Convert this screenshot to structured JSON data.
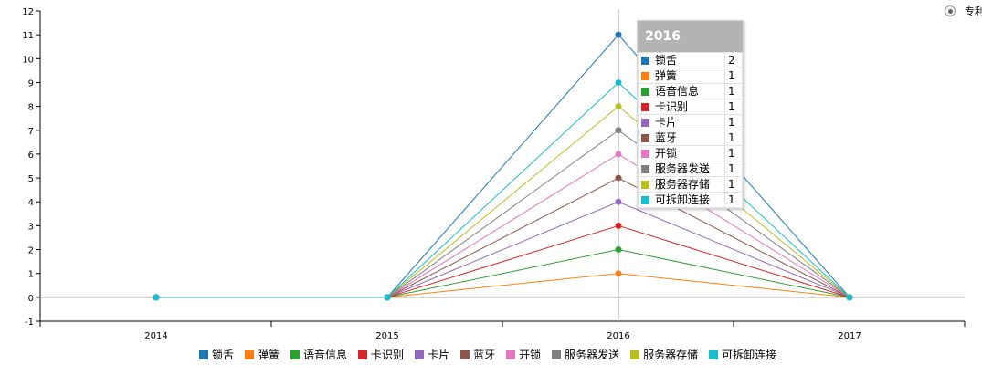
{
  "chart_data": {
    "type": "line",
    "x": [
      "2014",
      "2015",
      "2016",
      "2017"
    ],
    "ylim": [
      -1,
      12
    ],
    "yticks": [
      -1,
      0,
      1,
      2,
      3,
      4,
      5,
      6,
      7,
      8,
      9,
      10,
      11,
      12
    ],
    "series": [
      {
        "name": "锁舌",
        "color": "#1f77b4",
        "values": [
          0,
          0,
          11,
          0
        ]
      },
      {
        "name": "弹簧",
        "color": "#ff7f0e",
        "values": [
          0,
          0,
          1,
          0
        ]
      },
      {
        "name": "语音信息",
        "color": "#2ca02c",
        "values": [
          0,
          0,
          2,
          0
        ]
      },
      {
        "name": "卡识别",
        "color": "#d62728",
        "values": [
          0,
          0,
          3,
          0
        ]
      },
      {
        "name": "卡片",
        "color": "#9467bd",
        "values": [
          0,
          0,
          4,
          0
        ]
      },
      {
        "name": "蓝牙",
        "color": "#8c564b",
        "values": [
          0,
          0,
          5,
          0
        ]
      },
      {
        "name": "开锁",
        "color": "#e377c2",
        "values": [
          0,
          0,
          6,
          0
        ]
      },
      {
        "name": "服务器发送",
        "color": "#7f7f7f",
        "values": [
          0,
          0,
          7,
          0
        ]
      },
      {
        "name": "服务器存储",
        "color": "#bcbd22",
        "values": [
          0,
          0,
          8,
          0
        ]
      },
      {
        "name": "可拆卸连接",
        "color": "#17becf",
        "values": [
          0,
          0,
          9,
          0
        ]
      }
    ],
    "legend_position": "bottom",
    "grid": false
  },
  "tooltip": {
    "title": "2016",
    "rows": [
      {
        "name": "锁舌",
        "value": "2",
        "color": "#1f77b4"
      },
      {
        "name": "弹簧",
        "value": "1",
        "color": "#ff7f0e"
      },
      {
        "name": "语音信息",
        "value": "1",
        "color": "#2ca02c"
      },
      {
        "name": "卡识别",
        "value": "1",
        "color": "#d62728"
      },
      {
        "name": "卡片",
        "value": "1",
        "color": "#9467bd"
      },
      {
        "name": "蓝牙",
        "value": "1",
        "color": "#8c564b"
      },
      {
        "name": "开锁",
        "value": "1",
        "color": "#e377c2"
      },
      {
        "name": "服务器发送",
        "value": "1",
        "color": "#7f7f7f"
      },
      {
        "name": "服务器存储",
        "value": "1",
        "color": "#bcbd22"
      },
      {
        "name": "可拆卸连接",
        "value": "1",
        "color": "#17becf"
      }
    ]
  },
  "controls": {
    "radio_label": "专利"
  }
}
